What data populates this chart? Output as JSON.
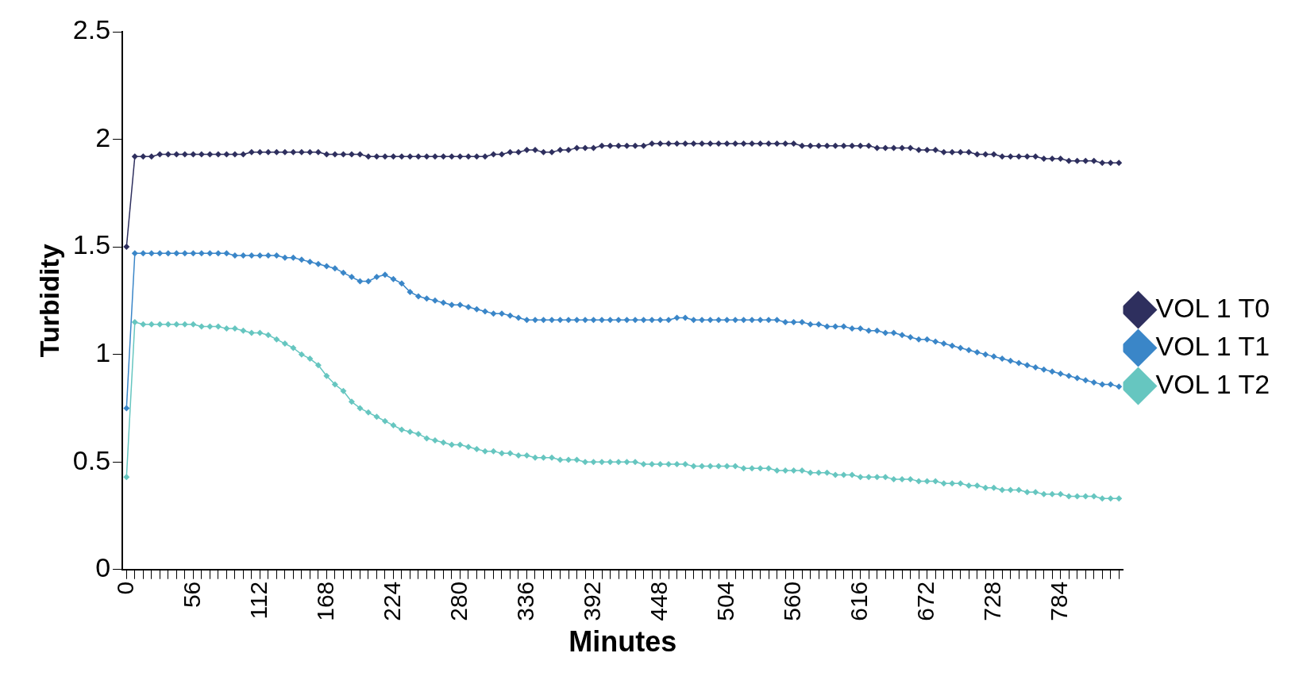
{
  "chart_data": {
    "type": "line",
    "xlabel": "Minutes",
    "ylabel": "Turbidity",
    "x": [
      0,
      7,
      14,
      21,
      28,
      35,
      42,
      49,
      56,
      63,
      70,
      77,
      84,
      91,
      98,
      105,
      112,
      119,
      126,
      133,
      140,
      147,
      154,
      161,
      168,
      175,
      182,
      189,
      196,
      203,
      210,
      217,
      224,
      231,
      238,
      245,
      252,
      259,
      266,
      273,
      280,
      287,
      294,
      301,
      308,
      315,
      322,
      329,
      336,
      343,
      350,
      357,
      364,
      371,
      378,
      385,
      392,
      399,
      406,
      413,
      420,
      427,
      434,
      441,
      448,
      455,
      462,
      469,
      476,
      483,
      490,
      497,
      504,
      511,
      518,
      525,
      532,
      539,
      546,
      553,
      560,
      567,
      574,
      581,
      588,
      595,
      602,
      609,
      616,
      623,
      630,
      637,
      644,
      651,
      658,
      665,
      672,
      679,
      686,
      693,
      700,
      707,
      714,
      721,
      728,
      735,
      742,
      749,
      756,
      763,
      770,
      777,
      784,
      791,
      798,
      805,
      812,
      819,
      826,
      833
    ],
    "xlim": [
      -3.5,
      836.5
    ],
    "xticks": [
      0,
      {
        "value": 7,
        "label": null
      },
      {
        "value": 14,
        "label": null
      },
      {
        "value": 21,
        "label": null
      },
      {
        "value": 28,
        "label": null
      },
      {
        "value": 35,
        "label": null
      },
      {
        "value": 42,
        "label": null
      },
      {
        "value": 49,
        "label": null
      },
      56,
      {
        "value": 63,
        "label": null
      },
      {
        "value": 70,
        "label": null
      },
      {
        "value": 77,
        "label": null
      },
      {
        "value": 84,
        "label": null
      },
      {
        "value": 91,
        "label": null
      },
      {
        "value": 98,
        "label": null
      },
      {
        "value": 105,
        "label": null
      },
      112,
      {
        "value": 119,
        "label": null
      },
      {
        "value": 126,
        "label": null
      },
      {
        "value": 133,
        "label": null
      },
      {
        "value": 140,
        "label": null
      },
      {
        "value": 147,
        "label": null
      },
      {
        "value": 154,
        "label": null
      },
      {
        "value": 161,
        "label": null
      },
      168,
      {
        "value": 175,
        "label": null
      },
      {
        "value": 182,
        "label": null
      },
      {
        "value": 189,
        "label": null
      },
      {
        "value": 196,
        "label": null
      },
      {
        "value": 203,
        "label": null
      },
      {
        "value": 210,
        "label": null
      },
      {
        "value": 217,
        "label": null
      },
      224,
      {
        "value": 231,
        "label": null
      },
      {
        "value": 238,
        "label": null
      },
      {
        "value": 245,
        "label": null
      },
      {
        "value": 252,
        "label": null
      },
      {
        "value": 259,
        "label": null
      },
      {
        "value": 266,
        "label": null
      },
      {
        "value": 273,
        "label": null
      },
      280,
      {
        "value": 287,
        "label": null
      },
      {
        "value": 294,
        "label": null
      },
      {
        "value": 301,
        "label": null
      },
      {
        "value": 308,
        "label": null
      },
      {
        "value": 315,
        "label": null
      },
      {
        "value": 322,
        "label": null
      },
      {
        "value": 329,
        "label": null
      },
      336,
      {
        "value": 343,
        "label": null
      },
      {
        "value": 350,
        "label": null
      },
      {
        "value": 357,
        "label": null
      },
      {
        "value": 364,
        "label": null
      },
      {
        "value": 371,
        "label": null
      },
      {
        "value": 378,
        "label": null
      },
      {
        "value": 385,
        "label": null
      },
      392,
      {
        "value": 399,
        "label": null
      },
      {
        "value": 406,
        "label": null
      },
      {
        "value": 413,
        "label": null
      },
      {
        "value": 420,
        "label": null
      },
      {
        "value": 427,
        "label": null
      },
      {
        "value": 434,
        "label": null
      },
      {
        "value": 441,
        "label": null
      },
      448,
      {
        "value": 455,
        "label": null
      },
      {
        "value": 462,
        "label": null
      },
      {
        "value": 469,
        "label": null
      },
      {
        "value": 476,
        "label": null
      },
      {
        "value": 483,
        "label": null
      },
      {
        "value": 490,
        "label": null
      },
      {
        "value": 497,
        "label": null
      },
      504,
      {
        "value": 511,
        "label": null
      },
      {
        "value": 518,
        "label": null
      },
      {
        "value": 525,
        "label": null
      },
      {
        "value": 532,
        "label": null
      },
      {
        "value": 539,
        "label": null
      },
      {
        "value": 546,
        "label": null
      },
      {
        "value": 553,
        "label": null
      },
      560,
      {
        "value": 567,
        "label": null
      },
      {
        "value": 574,
        "label": null
      },
      {
        "value": 581,
        "label": null
      },
      {
        "value": 588,
        "label": null
      },
      {
        "value": 595,
        "label": null
      },
      {
        "value": 602,
        "label": null
      },
      {
        "value": 609,
        "label": null
      },
      616,
      {
        "value": 623,
        "label": null
      },
      {
        "value": 630,
        "label": null
      },
      {
        "value": 637,
        "label": null
      },
      {
        "value": 644,
        "label": null
      },
      {
        "value": 651,
        "label": null
      },
      {
        "value": 658,
        "label": null
      },
      {
        "value": 665,
        "label": null
      },
      672,
      {
        "value": 679,
        "label": null
      },
      {
        "value": 686,
        "label": null
      },
      {
        "value": 693,
        "label": null
      },
      {
        "value": 700,
        "label": null
      },
      {
        "value": 707,
        "label": null
      },
      {
        "value": 714,
        "label": null
      },
      {
        "value": 721,
        "label": null
      },
      728,
      {
        "value": 735,
        "label": null
      },
      {
        "value": 742,
        "label": null
      },
      {
        "value": 749,
        "label": null
      },
      {
        "value": 756,
        "label": null
      },
      {
        "value": 763,
        "label": null
      },
      {
        "value": 770,
        "label": null
      },
      {
        "value": 777,
        "label": null
      },
      784,
      {
        "value": 791,
        "label": null
      },
      {
        "value": 798,
        "label": null
      },
      {
        "value": 805,
        "label": null
      },
      {
        "value": 812,
        "label": null
      },
      {
        "value": 819,
        "label": null
      },
      {
        "value": 826,
        "label": null
      },
      {
        "value": 833,
        "label": null
      }
    ],
    "series": [
      {
        "name": "VOL 1 T0",
        "color": "#2e2f5e",
        "values": [
          1.5,
          1.92,
          1.92,
          1.92,
          1.93,
          1.93,
          1.93,
          1.93,
          1.93,
          1.93,
          1.93,
          1.93,
          1.93,
          1.93,
          1.93,
          1.94,
          1.94,
          1.94,
          1.94,
          1.94,
          1.94,
          1.94,
          1.94,
          1.94,
          1.93,
          1.93,
          1.93,
          1.93,
          1.93,
          1.92,
          1.92,
          1.92,
          1.92,
          1.92,
          1.92,
          1.92,
          1.92,
          1.92,
          1.92,
          1.92,
          1.92,
          1.92,
          1.92,
          1.92,
          1.93,
          1.93,
          1.94,
          1.94,
          1.95,
          1.95,
          1.94,
          1.94,
          1.95,
          1.95,
          1.96,
          1.96,
          1.96,
          1.97,
          1.97,
          1.97,
          1.97,
          1.97,
          1.97,
          1.98,
          1.98,
          1.98,
          1.98,
          1.98,
          1.98,
          1.98,
          1.98,
          1.98,
          1.98,
          1.98,
          1.98,
          1.98,
          1.98,
          1.98,
          1.98,
          1.98,
          1.98,
          1.97,
          1.97,
          1.97,
          1.97,
          1.97,
          1.97,
          1.97,
          1.97,
          1.97,
          1.96,
          1.96,
          1.96,
          1.96,
          1.96,
          1.95,
          1.95,
          1.95,
          1.94,
          1.94,
          1.94,
          1.94,
          1.93,
          1.93,
          1.93,
          1.92,
          1.92,
          1.92,
          1.92,
          1.92,
          1.91,
          1.91,
          1.91,
          1.9,
          1.9,
          1.9,
          1.9,
          1.89,
          1.89,
          1.89
        ]
      },
      {
        "name": "VOL 1 T1",
        "color": "#3a86c8",
        "values": [
          0.75,
          1.47,
          1.47,
          1.47,
          1.47,
          1.47,
          1.47,
          1.47,
          1.47,
          1.47,
          1.47,
          1.47,
          1.47,
          1.46,
          1.46,
          1.46,
          1.46,
          1.46,
          1.46,
          1.45,
          1.45,
          1.44,
          1.43,
          1.42,
          1.41,
          1.4,
          1.38,
          1.36,
          1.34,
          1.34,
          1.36,
          1.37,
          1.35,
          1.33,
          1.29,
          1.27,
          1.26,
          1.25,
          1.24,
          1.23,
          1.23,
          1.22,
          1.21,
          1.2,
          1.19,
          1.19,
          1.18,
          1.17,
          1.16,
          1.16,
          1.16,
          1.16,
          1.16,
          1.16,
          1.16,
          1.16,
          1.16,
          1.16,
          1.16,
          1.16,
          1.16,
          1.16,
          1.16,
          1.16,
          1.16,
          1.16,
          1.17,
          1.17,
          1.16,
          1.16,
          1.16,
          1.16,
          1.16,
          1.16,
          1.16,
          1.16,
          1.16,
          1.16,
          1.16,
          1.15,
          1.15,
          1.15,
          1.14,
          1.14,
          1.13,
          1.13,
          1.13,
          1.12,
          1.12,
          1.11,
          1.11,
          1.1,
          1.1,
          1.09,
          1.08,
          1.07,
          1.07,
          1.06,
          1.05,
          1.04,
          1.03,
          1.02,
          1.01,
          1.0,
          0.99,
          0.98,
          0.97,
          0.96,
          0.95,
          0.94,
          0.93,
          0.92,
          0.91,
          0.9,
          0.89,
          0.88,
          0.87,
          0.86,
          0.86,
          0.85
        ]
      },
      {
        "name": "VOL 1 T2",
        "color": "#66c6c0",
        "values": [
          0.43,
          1.15,
          1.14,
          1.14,
          1.14,
          1.14,
          1.14,
          1.14,
          1.14,
          1.13,
          1.13,
          1.13,
          1.12,
          1.12,
          1.11,
          1.1,
          1.1,
          1.09,
          1.07,
          1.05,
          1.03,
          1.0,
          0.98,
          0.95,
          0.9,
          0.86,
          0.83,
          0.78,
          0.75,
          0.73,
          0.71,
          0.69,
          0.67,
          0.65,
          0.64,
          0.63,
          0.61,
          0.6,
          0.59,
          0.58,
          0.58,
          0.57,
          0.56,
          0.55,
          0.55,
          0.54,
          0.54,
          0.53,
          0.53,
          0.52,
          0.52,
          0.52,
          0.51,
          0.51,
          0.51,
          0.5,
          0.5,
          0.5,
          0.5,
          0.5,
          0.5,
          0.5,
          0.49,
          0.49,
          0.49,
          0.49,
          0.49,
          0.49,
          0.48,
          0.48,
          0.48,
          0.48,
          0.48,
          0.48,
          0.47,
          0.47,
          0.47,
          0.47,
          0.46,
          0.46,
          0.46,
          0.46,
          0.45,
          0.45,
          0.45,
          0.44,
          0.44,
          0.44,
          0.43,
          0.43,
          0.43,
          0.43,
          0.42,
          0.42,
          0.42,
          0.41,
          0.41,
          0.41,
          0.4,
          0.4,
          0.4,
          0.39,
          0.39,
          0.38,
          0.38,
          0.37,
          0.37,
          0.37,
          0.36,
          0.36,
          0.35,
          0.35,
          0.35,
          0.34,
          0.34,
          0.34,
          0.34,
          0.33,
          0.33,
          0.33
        ]
      }
    ],
    "ylim": [
      0,
      2.5
    ],
    "yticks": [
      0,
      0.5,
      1,
      1.5,
      2,
      2.5
    ],
    "grid": false,
    "legend": "right",
    "marker": "diamond",
    "line_style": "solid"
  }
}
